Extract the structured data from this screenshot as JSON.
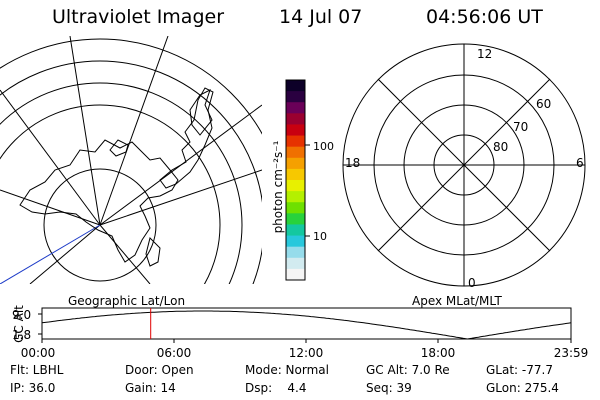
{
  "header": {
    "instrument": "Ultraviolet Imager",
    "date": "14 Jul 07",
    "time": "04:56:06 UT"
  },
  "colorbar": {
    "unit_label": "photon cm⁻²s⁻¹",
    "ticks": [
      "100",
      "10"
    ],
    "colors": [
      "#0d0028",
      "#2a0040",
      "#6a0058",
      "#9a0030",
      "#c80010",
      "#e63200",
      "#f07000",
      "#f5a000",
      "#f7c800",
      "#e8f000",
      "#b4f000",
      "#6ee000",
      "#28d23c",
      "#14c8a0",
      "#28c8dc",
      "#96dceb",
      "#d2ebf0",
      "#f5f5f5"
    ]
  },
  "left_panel": {
    "label": "Geographic Lat/Lon"
  },
  "right_panel": {
    "label": "Apex MLat/MLT",
    "mlt_labels": {
      "top": "12",
      "left": "18",
      "right": "6",
      "bottom": "0"
    },
    "mlat_labels": [
      "60",
      "70",
      "80"
    ]
  },
  "altitude_plot": {
    "ylabel": "GC Alt",
    "yticks": [
      "9.0",
      "1.8"
    ],
    "xticks": [
      "00:00",
      "06:00",
      "12:00",
      "18:00",
      "23:59"
    ],
    "marker_time": "04:56",
    "marker_color": "#e00000"
  },
  "status": {
    "row1": [
      {
        "key": "flt",
        "text": "Flt: LBHL"
      },
      {
        "key": "door",
        "text": "Door: Open"
      },
      {
        "key": "mode",
        "text": "Mode: Normal"
      },
      {
        "key": "gcalt",
        "text": "GC Alt: 7.0 Re"
      },
      {
        "key": "glat",
        "text": "GLat: -77.7"
      }
    ],
    "row2": [
      {
        "key": "ip",
        "text": "IP: 36.0"
      },
      {
        "key": "gain",
        "text": "Gain: 14"
      },
      {
        "key": "dsp",
        "text": "Dsp:    4.4"
      },
      {
        "key": "seq",
        "text": "Seq: 39"
      },
      {
        "key": "glon",
        "text": "GLon: 275.4"
      }
    ]
  }
}
